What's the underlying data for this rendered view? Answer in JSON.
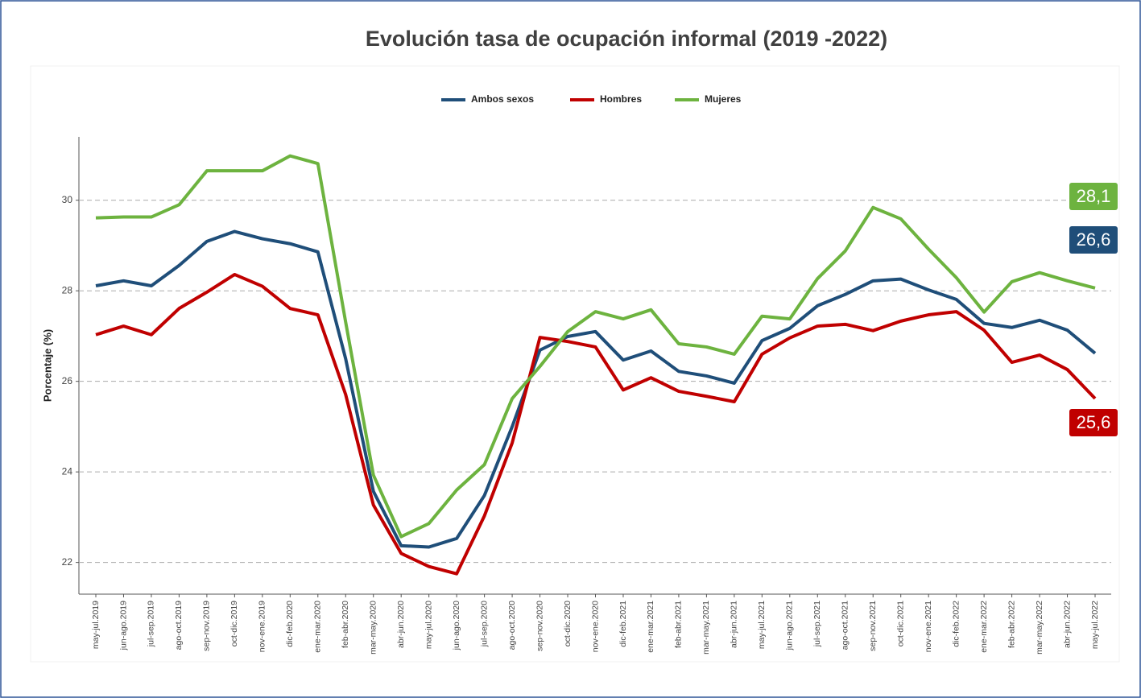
{
  "chart_data": {
    "type": "line",
    "title": "Evolución tasa de ocupación informal (2019 -2022)",
    "y_label": "Porcentaje (%)",
    "categories": [
      "may-jul.2019",
      "jun-ago.2019",
      "jul-sep.2019",
      "ago-oct.2019",
      "sep-nov.2019",
      "oct-dic.2019",
      "nov-ene.2019",
      "dic-feb.2020",
      "ene-mar.2020",
      "feb-abr.2020",
      "mar-may.2020",
      "abr-jun.2020",
      "may-jul.2020",
      "jun-ago.2020",
      "jul-sep.2020",
      "ago-oct.2020",
      "sep-nov.2020",
      "oct-dic.2020",
      "nov-ene.2020",
      "dic-feb.2021",
      "ene-mar.2021",
      "feb-abr.2021",
      "mar-may.2021",
      "abr-jun.2021",
      "may-jul.2021",
      "jun-ago.2021",
      "jul-sep.2021",
      "ago-oct.2021",
      "sep-nov.2021",
      "oct-dic.2021",
      "nov-ene.2021",
      "dic-feb.2022",
      "ene-mar.2022",
      "feb-abr.2022",
      "mar-may.2022",
      "abr-jun.2022",
      "may-jul.2022"
    ],
    "series": [
      {
        "name": "Ambos sexos",
        "color": "#1f4e79",
        "values": [
          28.11,
          28.22,
          28.11,
          28.56,
          29.09,
          29.31,
          29.15,
          29.04,
          28.86,
          26.5,
          23.57,
          22.37,
          22.34,
          22.53,
          23.48,
          25.0,
          26.69,
          26.99,
          27.1,
          26.47,
          26.67,
          26.22,
          26.12,
          25.96,
          26.9,
          27.17,
          27.67,
          27.92,
          28.22,
          28.26,
          28.02,
          27.81,
          27.28,
          27.19,
          27.35,
          27.13,
          26.62
        ],
        "value_labels": [
          null,
          null,
          null,
          null,
          null,
          null,
          null,
          null,
          null,
          null,
          null,
          null,
          null,
          null,
          null,
          null,
          null,
          null,
          null,
          null,
          null,
          null,
          null,
          null,
          null,
          null,
          null,
          null,
          null,
          null,
          null,
          null,
          null,
          null,
          null,
          null,
          "26,6"
        ]
      },
      {
        "name": "Hombres",
        "color": "#c00000",
        "values": [
          27.03,
          27.22,
          27.03,
          27.61,
          27.97,
          28.36,
          28.1,
          27.61,
          27.47,
          25.71,
          23.27,
          22.2,
          21.91,
          21.75,
          23.03,
          24.64,
          26.97,
          26.88,
          26.76,
          25.81,
          26.08,
          25.78,
          25.67,
          25.55,
          26.6,
          26.96,
          27.22,
          27.26,
          27.12,
          27.33,
          27.47,
          27.54,
          27.13,
          26.42,
          26.58,
          26.26,
          25.62
        ],
        "value_labels": [
          null,
          null,
          null,
          null,
          null,
          null,
          null,
          null,
          null,
          null,
          null,
          null,
          null,
          null,
          null,
          null,
          null,
          null,
          null,
          null,
          null,
          null,
          null,
          null,
          null,
          null,
          null,
          null,
          null,
          null,
          null,
          null,
          null,
          null,
          null,
          null,
          "25,6"
        ]
      },
      {
        "name": "Mujeres",
        "color": "#6db33f",
        "values": [
          29.61,
          29.63,
          29.63,
          29.9,
          30.65,
          30.65,
          30.65,
          30.98,
          30.81,
          27.31,
          23.93,
          22.57,
          22.86,
          23.6,
          24.16,
          25.62,
          26.33,
          27.1,
          27.54,
          27.38,
          27.58,
          26.83,
          26.76,
          26.6,
          27.44,
          27.38,
          28.27,
          28.88,
          29.84,
          29.59,
          28.92,
          28.29,
          27.53,
          28.2,
          28.4,
          28.22,
          28.06
        ],
        "value_labels": [
          null,
          null,
          null,
          null,
          null,
          null,
          null,
          null,
          null,
          null,
          null,
          null,
          null,
          null,
          null,
          null,
          null,
          null,
          null,
          null,
          null,
          null,
          null,
          null,
          null,
          null,
          null,
          null,
          null,
          null,
          null,
          null,
          null,
          null,
          null,
          null,
          "28,1"
        ]
      }
    ],
    "ylim": [
      21.3,
      31.4
    ],
    "yticks": [
      22,
      24,
      26,
      28,
      30
    ],
    "grid": true,
    "legend": "top"
  }
}
